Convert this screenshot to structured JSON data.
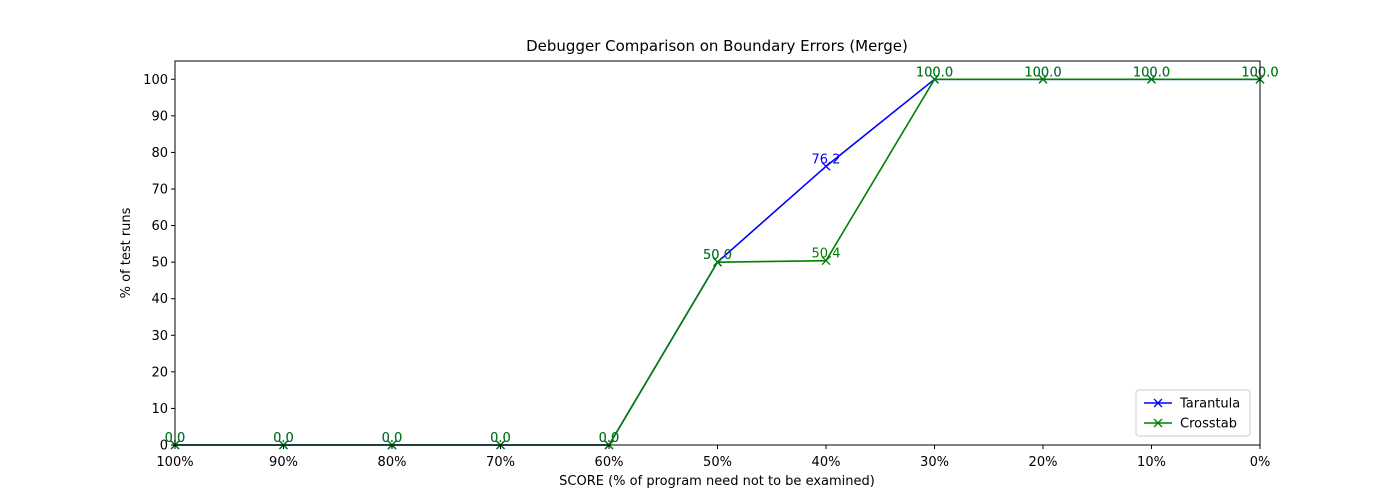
{
  "chart_data": {
    "type": "line",
    "title": "Debugger Comparison on Boundary Errors (Merge)",
    "xlabel": "SCORE (% of program need not to be examined)",
    "ylabel": "% of test runs",
    "categories": [
      "100%",
      "90%",
      "80%",
      "70%",
      "60%",
      "50%",
      "40%",
      "30%",
      "20%",
      "10%",
      "0%"
    ],
    "yticks": [
      "0",
      "10",
      "20",
      "30",
      "40",
      "50",
      "60",
      "70",
      "80",
      "90",
      "100"
    ],
    "ylim": [
      0,
      105
    ],
    "grid": false,
    "legend_position": "lower-right",
    "series": [
      {
        "name": "Tarantula",
        "color": "#0000ff",
        "marker": "x",
        "values": [
          0,
          0,
          0,
          0,
          0,
          50,
          76.2,
          100,
          100,
          100,
          100
        ],
        "labels": [
          "0.0",
          "0.0",
          "0.0",
          "0.0",
          "0.0",
          "50.0",
          "76.2",
          "100.0",
          "100.0",
          "100.0",
          "100.0"
        ]
      },
      {
        "name": "Crosstab",
        "color": "#008000",
        "marker": "x",
        "values": [
          0,
          0,
          0,
          0,
          0,
          50,
          50.4,
          100,
          100,
          100,
          100
        ],
        "labels": [
          "0.0",
          "0.0",
          "0.0",
          "0.0",
          "0.0",
          "50.0",
          "50.4",
          "100.0",
          "100.0",
          "100.0",
          "100.0"
        ]
      }
    ]
  }
}
